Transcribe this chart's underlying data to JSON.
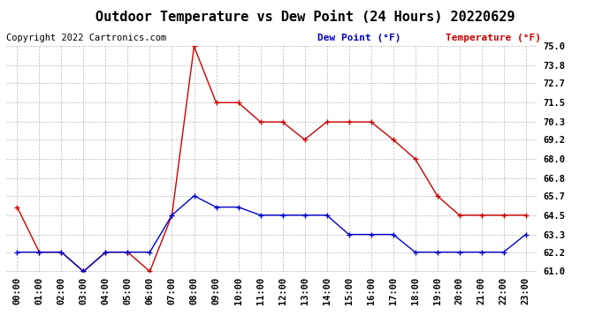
{
  "title": "Outdoor Temperature vs Dew Point (24 Hours) 20220629",
  "copyright": "Copyright 2022 Cartronics.com",
  "legend_dew": "Dew Point (°F)",
  "legend_temp": "Temperature (°F)",
  "hours": [
    "00:00",
    "01:00",
    "02:00",
    "03:00",
    "04:00",
    "05:00",
    "06:00",
    "07:00",
    "08:00",
    "09:00",
    "10:00",
    "11:00",
    "12:00",
    "13:00",
    "14:00",
    "15:00",
    "16:00",
    "17:00",
    "18:00",
    "19:00",
    "20:00",
    "21:00",
    "22:00",
    "23:00"
  ],
  "temperature": [
    65.0,
    62.2,
    62.2,
    61.0,
    62.2,
    62.2,
    61.0,
    64.5,
    75.0,
    71.5,
    71.5,
    70.3,
    70.3,
    69.2,
    70.3,
    70.3,
    70.3,
    69.2,
    68.0,
    65.7,
    64.5,
    64.5,
    64.5,
    64.5
  ],
  "dew_point": [
    62.2,
    62.2,
    62.2,
    61.0,
    62.2,
    62.2,
    62.2,
    64.5,
    65.7,
    65.0,
    65.0,
    64.5,
    64.5,
    64.5,
    64.5,
    63.3,
    63.3,
    63.3,
    62.2,
    62.2,
    62.2,
    62.2,
    62.2,
    63.3
  ],
  "ylim_min": 61.0,
  "ylim_max": 75.0,
  "yticks": [
    61.0,
    62.2,
    63.3,
    64.5,
    65.7,
    66.8,
    68.0,
    69.2,
    70.3,
    71.5,
    72.7,
    73.8,
    75.0
  ],
  "temp_color": "#cc0000",
  "dew_color": "#0000cc",
  "bg_color": "#ffffff",
  "grid_color": "#bbbbbb",
  "title_fontsize": 11,
  "copyright_fontsize": 7.5,
  "legend_fontsize": 8,
  "tick_fontsize": 7.5
}
